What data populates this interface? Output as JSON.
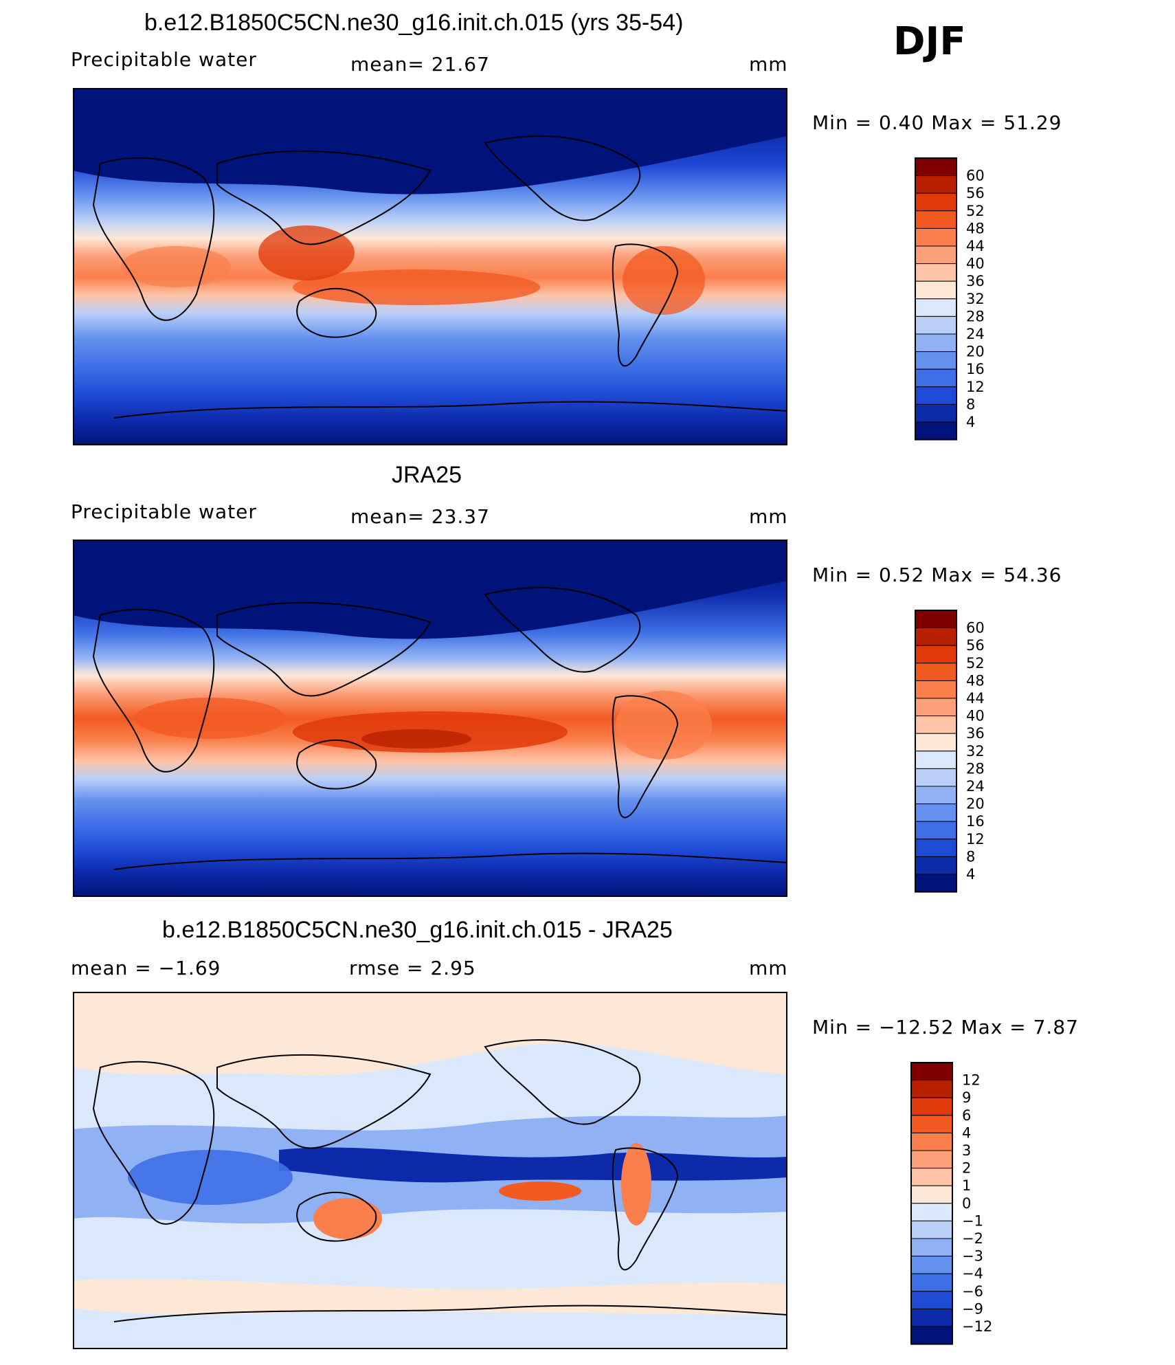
{
  "season_label": "DJF",
  "panels": [
    {
      "title": "b.e12.B1850C5CN.ne30_g16.init.ch.015 (yrs 35-54)",
      "left_label": "Precipitable  water",
      "mid_label": "mean=   21.67",
      "units": "mm",
      "minmax": "Min  =     0.40  Max  =    51.29"
    },
    {
      "title": "JRA25",
      "left_label": "Precipitable  water",
      "mid_label": "mean=   23.37",
      "units": "mm",
      "minmax": "Min  =     0.52  Max  =    54.36"
    },
    {
      "title": "b.e12.B1850C5CN.ne30_g16.init.ch.015 - JRA25",
      "left_label": "mean  =    −1.69",
      "mid_label": "rmse  =     2.95",
      "units": "mm",
      "minmax": "Min  =  −12.52  Max  =     7.87"
    }
  ],
  "chart_data": [
    {
      "type": "heatmap",
      "title": "b.e12.B1850C5CN.ne30_g16.init.ch.015 (yrs 35-54)",
      "variable": "Precipitable water",
      "units": "mm",
      "mean": 21.67,
      "min": 0.4,
      "max": 51.29,
      "colorbar_levels": [
        "60",
        "56",
        "52",
        "48",
        "44",
        "40",
        "36",
        "32",
        "28",
        "24",
        "20",
        "16",
        "12",
        "8",
        "4"
      ],
      "colors": [
        "#800000",
        "#b82000",
        "#e03a0a",
        "#f25a22",
        "#fa7f4c",
        "#fca07a",
        "#fdc4a8",
        "#fde8d8",
        "#dbe8fb",
        "#b9cff8",
        "#90b2f4",
        "#6491ee",
        "#3e6fe6",
        "#1f4ad6",
        "#0c2aaa",
        "#00137a"
      ]
    },
    {
      "type": "heatmap",
      "title": "JRA25",
      "variable": "Precipitable water",
      "units": "mm",
      "mean": 23.37,
      "min": 0.52,
      "max": 54.36,
      "colorbar_levels": [
        "60",
        "56",
        "52",
        "48",
        "44",
        "40",
        "36",
        "32",
        "28",
        "24",
        "20",
        "16",
        "12",
        "8",
        "4"
      ],
      "colors": [
        "#800000",
        "#b82000",
        "#e03a0a",
        "#f25a22",
        "#fa7f4c",
        "#fca07a",
        "#fdc4a8",
        "#fde8d8",
        "#dbe8fb",
        "#b9cff8",
        "#90b2f4",
        "#6491ee",
        "#3e6fe6",
        "#1f4ad6",
        "#0c2aaa",
        "#00137a"
      ]
    },
    {
      "type": "heatmap",
      "title": "b.e12.B1850C5CN.ne30_g16.init.ch.015 - JRA25",
      "units": "mm",
      "mean": -1.69,
      "rmse": 2.95,
      "min": -12.52,
      "max": 7.87,
      "colorbar_levels": [
        "12",
        "9",
        "6",
        "4",
        "3",
        "2",
        "1",
        "0",
        "−1",
        "−2",
        "−3",
        "−4",
        "−6",
        "−9",
        "−12"
      ],
      "colors": [
        "#800000",
        "#b82000",
        "#e03a0a",
        "#f25a22",
        "#fa7f4c",
        "#fca07a",
        "#fdc4a8",
        "#fde8d8",
        "#dbe8fb",
        "#b9cff8",
        "#90b2f4",
        "#6491ee",
        "#3e6fe6",
        "#1f4ad6",
        "#0c2aaa",
        "#00137a"
      ]
    }
  ]
}
